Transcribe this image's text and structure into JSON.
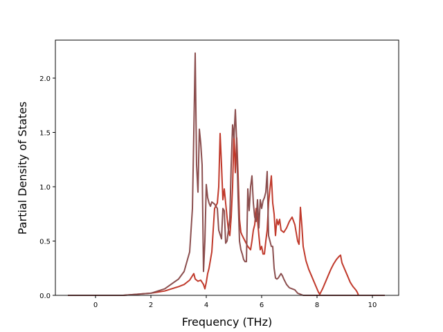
{
  "chart_data": {
    "type": "line",
    "title": "",
    "xlabel": "Frequency (THz)",
    "ylabel": "Partial Density of States",
    "xlim": [
      -1.45,
      10.95
    ],
    "ylim": [
      0.0,
      2.35
    ],
    "xticks": [
      0,
      2,
      4,
      6,
      8,
      10
    ],
    "xtick_labels": [
      "0",
      "2",
      "4",
      "6",
      "8",
      "10"
    ],
    "yticks": [
      0.0,
      0.5,
      1.0,
      1.5,
      2.0
    ],
    "ytick_labels": [
      "0.0",
      "0.5",
      "1.0",
      "1.5",
      "2.0"
    ],
    "grid": false,
    "legend": "none",
    "series": [
      {
        "color": "#c0392b",
        "x": [
          -1.0,
          0.0,
          1.0,
          2.0,
          2.5,
          3.0,
          3.2,
          3.4,
          3.5,
          3.55,
          3.6,
          3.7,
          3.8,
          3.9,
          3.95,
          4.0,
          4.05,
          4.1,
          4.2,
          4.3,
          4.4,
          4.45,
          4.5,
          4.55,
          4.6,
          4.65,
          4.7,
          4.75,
          4.8,
          4.85,
          4.9,
          4.95,
          5.0,
          5.05,
          5.1,
          5.15,
          5.2,
          5.25,
          5.3,
          5.4,
          5.5,
          5.6,
          5.65,
          5.7,
          5.75,
          5.8,
          5.85,
          5.9,
          5.95,
          6.0,
          6.05,
          6.1,
          6.15,
          6.2,
          6.25,
          6.3,
          6.35,
          6.4,
          6.45,
          6.5,
          6.55,
          6.6,
          6.65,
          6.7,
          6.8,
          6.9,
          7.0,
          7.1,
          7.2,
          7.3,
          7.35,
          7.4,
          7.45,
          7.5,
          7.6,
          7.7,
          7.8,
          7.9,
          8.0,
          8.05,
          8.1,
          8.2,
          8.3,
          8.4,
          8.5,
          8.6,
          8.7,
          8.8,
          8.85,
          8.9,
          9.0,
          9.1,
          9.2,
          9.3,
          9.4,
          9.45,
          9.5,
          9.6,
          10.0,
          10.45
        ],
        "values": [
          0.0,
          0.0,
          0.0,
          0.02,
          0.04,
          0.08,
          0.1,
          0.14,
          0.18,
          0.2,
          0.15,
          0.13,
          0.14,
          0.1,
          0.06,
          0.12,
          0.2,
          0.25,
          0.4,
          0.8,
          0.85,
          1.0,
          1.49,
          1.2,
          0.88,
          0.98,
          0.85,
          0.72,
          0.6,
          0.55,
          0.72,
          1.0,
          1.5,
          1.13,
          1.45,
          1.1,
          0.7,
          0.58,
          0.55,
          0.5,
          0.45,
          0.42,
          0.5,
          0.6,
          0.65,
          0.8,
          0.7,
          0.55,
          0.42,
          0.45,
          0.38,
          0.38,
          0.5,
          0.6,
          0.85,
          0.98,
          1.1,
          0.85,
          0.75,
          0.55,
          0.7,
          0.65,
          0.7,
          0.6,
          0.58,
          0.62,
          0.68,
          0.72,
          0.65,
          0.5,
          0.47,
          0.81,
          0.65,
          0.45,
          0.32,
          0.24,
          0.18,
          0.12,
          0.06,
          0.03,
          0.01,
          0.06,
          0.12,
          0.18,
          0.24,
          0.29,
          0.33,
          0.36,
          0.37,
          0.3,
          0.24,
          0.18,
          0.12,
          0.08,
          0.05,
          0.03,
          0.0,
          0.0,
          0.0,
          0.0
        ]
      },
      {
        "color": "#8b4e4e",
        "x": [
          -1.0,
          0.0,
          1.0,
          2.0,
          2.5,
          3.0,
          3.2,
          3.4,
          3.5,
          3.55,
          3.6,
          3.65,
          3.7,
          3.75,
          3.8,
          3.85,
          3.9,
          3.95,
          4.0,
          4.05,
          4.1,
          4.15,
          4.2,
          4.3,
          4.4,
          4.45,
          4.5,
          4.55,
          4.6,
          4.65,
          4.7,
          4.75,
          4.8,
          4.85,
          4.9,
          4.95,
          5.0,
          5.05,
          5.1,
          5.15,
          5.2,
          5.25,
          5.3,
          5.35,
          5.4,
          5.45,
          5.5,
          5.55,
          5.6,
          5.65,
          5.7,
          5.75,
          5.8,
          5.85,
          5.9,
          5.95,
          6.0,
          6.05,
          6.1,
          6.15,
          6.2,
          6.25,
          6.3,
          6.35,
          6.4,
          6.45,
          6.5,
          6.55,
          6.6,
          6.65,
          6.7,
          6.75,
          6.8,
          6.9,
          7.0,
          7.1,
          7.2,
          7.3,
          7.4,
          7.5,
          7.6,
          7.7,
          7.8,
          7.9,
          8.0,
          8.5,
          9.0,
          9.5,
          10.0,
          10.45
        ],
        "values": [
          0.0,
          0.0,
          0.0,
          0.02,
          0.06,
          0.15,
          0.22,
          0.4,
          0.8,
          1.5,
          2.23,
          1.2,
          0.95,
          1.53,
          1.4,
          1.2,
          0.22,
          0.5,
          1.02,
          0.9,
          0.85,
          0.82,
          0.86,
          0.84,
          0.8,
          0.6,
          0.56,
          0.52,
          0.8,
          0.78,
          0.48,
          0.5,
          0.6,
          0.7,
          1.2,
          1.57,
          1.45,
          1.71,
          1.4,
          0.9,
          0.5,
          0.42,
          0.38,
          0.33,
          0.31,
          0.31,
          0.98,
          0.78,
          1.0,
          1.1,
          0.85,
          0.72,
          0.68,
          0.88,
          0.62,
          0.88,
          0.8,
          0.87,
          0.9,
          0.95,
          1.14,
          0.55,
          0.5,
          0.45,
          0.45,
          0.25,
          0.16,
          0.15,
          0.16,
          0.18,
          0.2,
          0.18,
          0.15,
          0.1,
          0.07,
          0.06,
          0.05,
          0.02,
          0.01,
          0.0,
          0.0,
          0.0,
          0.0,
          0.0,
          0.0,
          0.0,
          0.0,
          0.0,
          0.0,
          0.0
        ]
      }
    ]
  }
}
